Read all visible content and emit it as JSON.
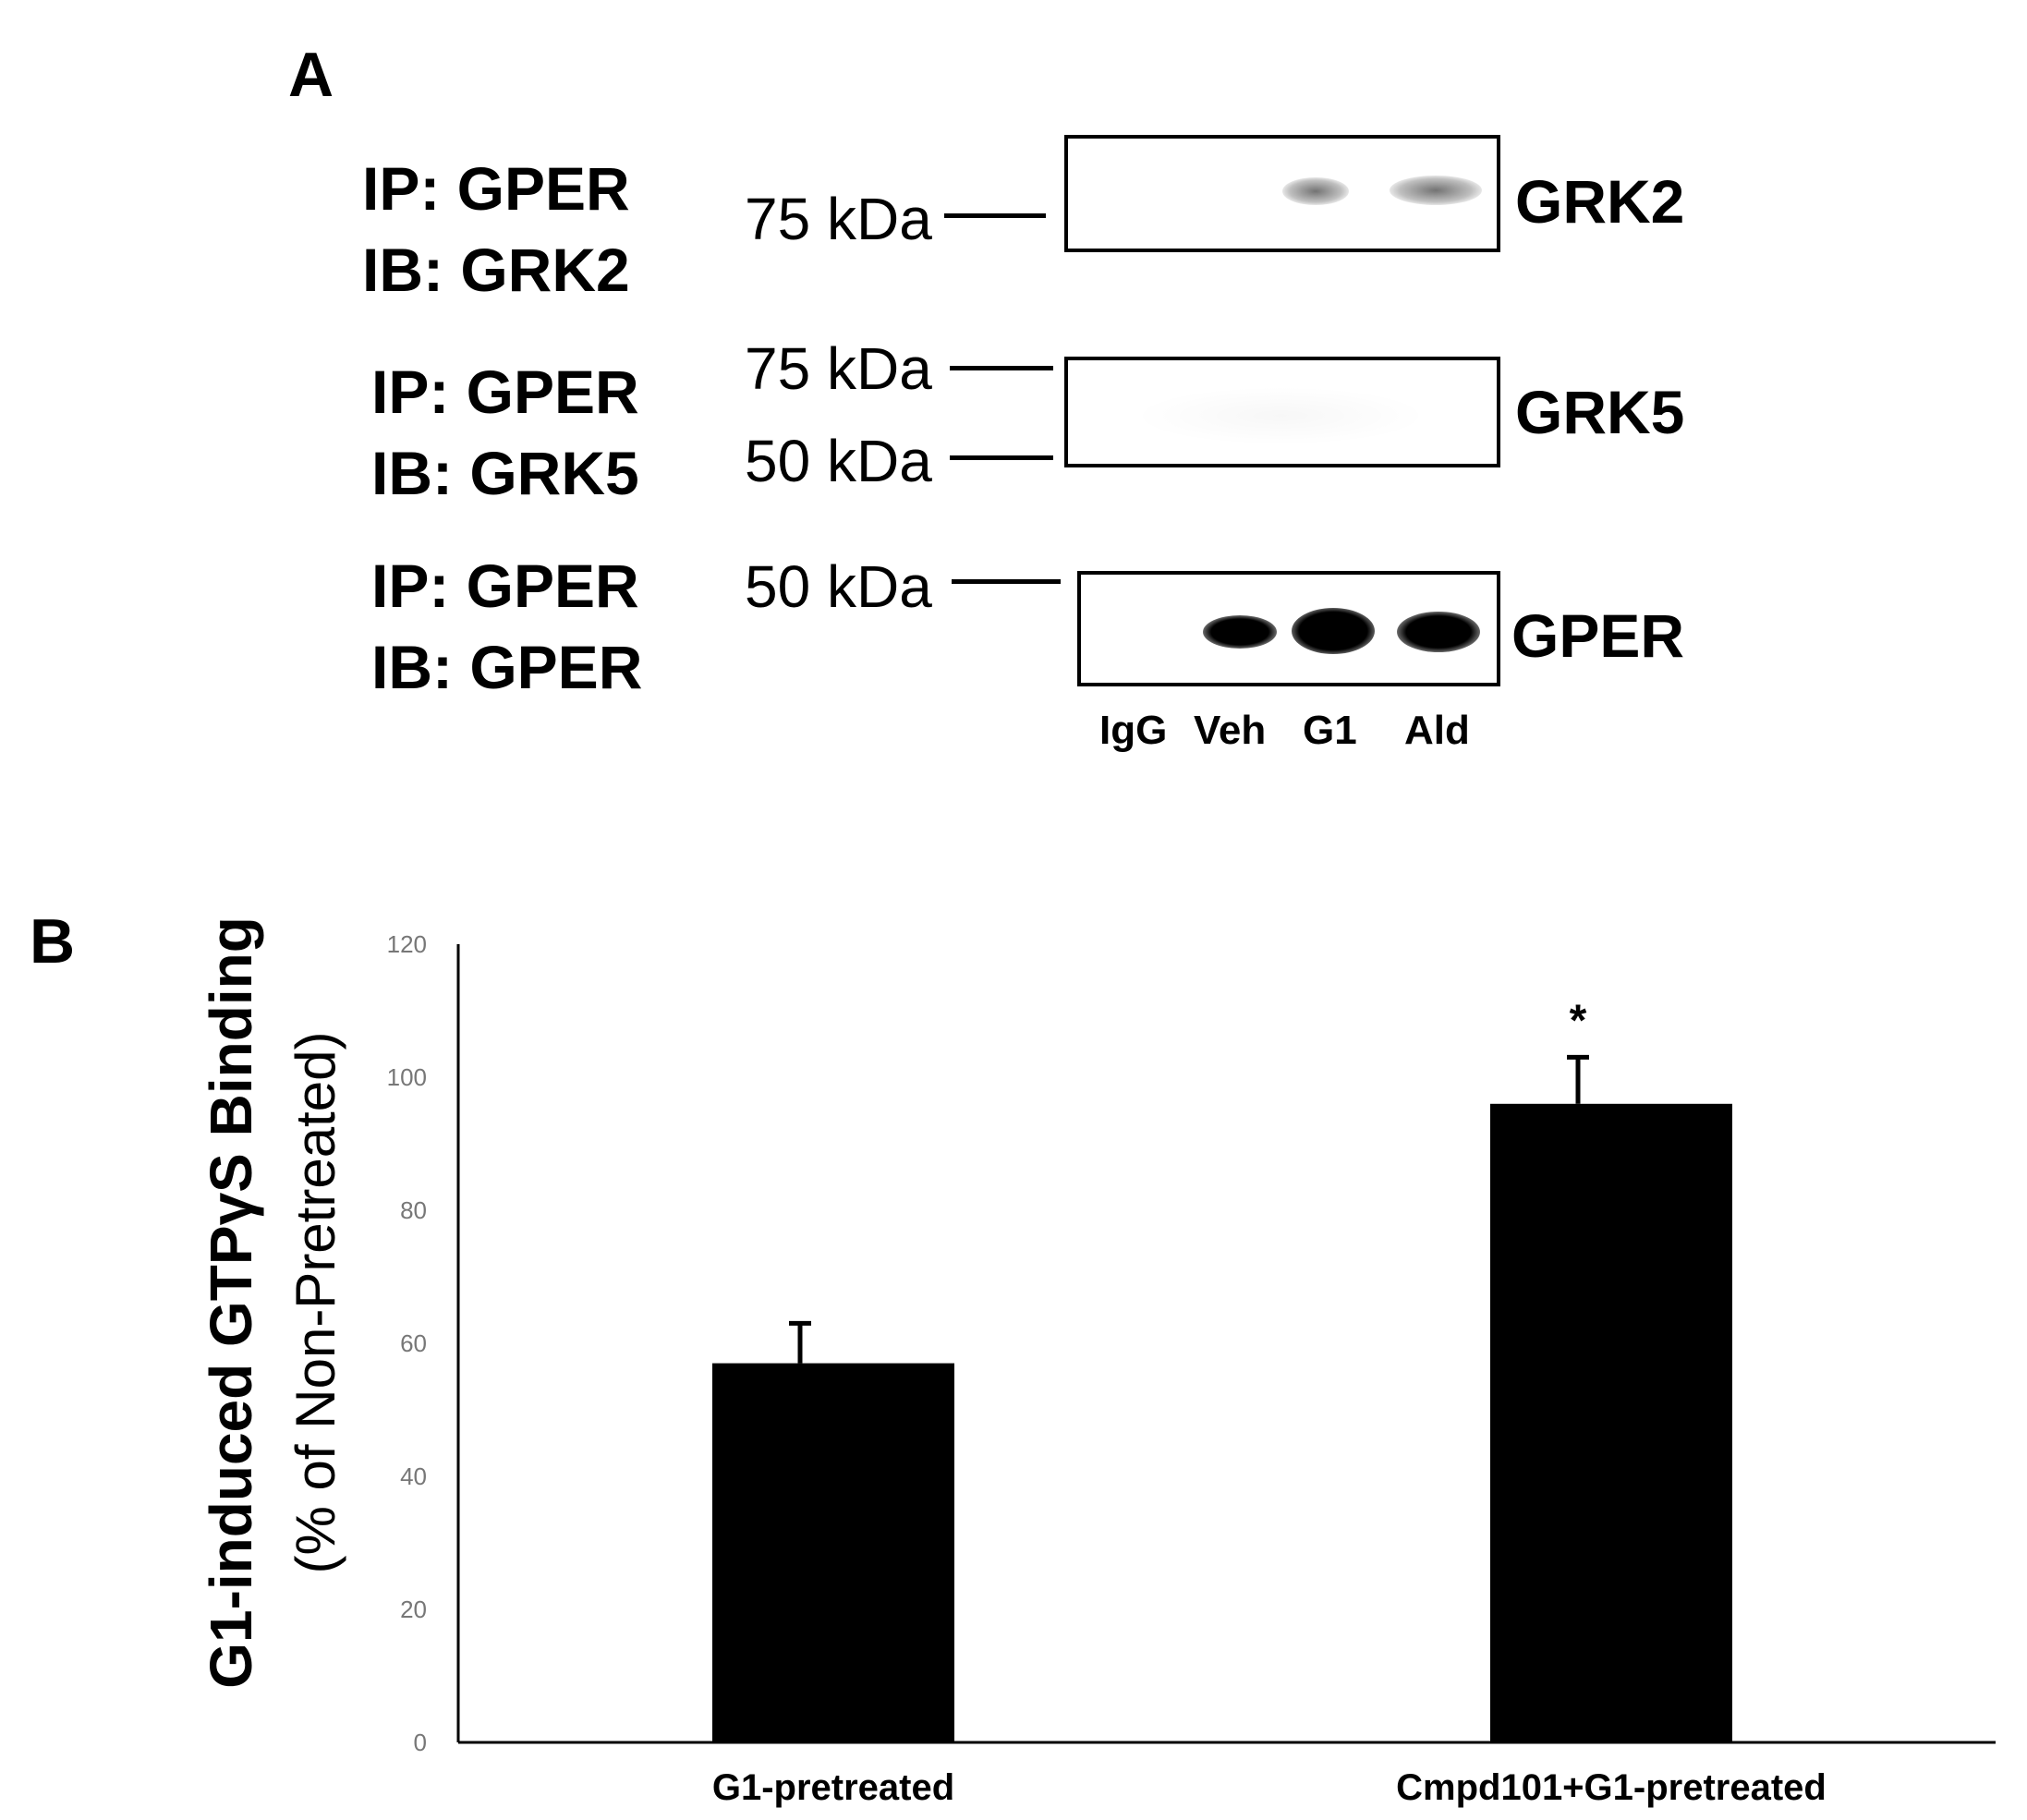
{
  "panel_a": {
    "label": "A",
    "rows": [
      {
        "ip": "IP: GPER",
        "ib": "IB: GRK2",
        "target": "GRK2",
        "markers": [
          "75 kDa"
        ]
      },
      {
        "ip": "IP: GPER",
        "ib": "IB: GRK5",
        "target": "GRK5",
        "markers": [
          "75 kDa",
          "50 kDa"
        ]
      },
      {
        "ip": "IP: GPER",
        "ib": "IB: GPER",
        "target": "GPER",
        "markers": [
          "50 kDa"
        ]
      }
    ],
    "lanes": [
      "IgG",
      "Veh",
      "G1",
      "Ald"
    ]
  },
  "panel_b": {
    "label": "B",
    "ylabel_line1": "G1-induced GTPγS Binding",
    "ylabel_line2": "(% of Non-Pretreated)"
  },
  "chart_data": {
    "type": "bar",
    "categories": [
      "G1-pretreated",
      "Cmpd101+G1-pretreated"
    ],
    "values": [
      57,
      96
    ],
    "errors": [
      6,
      7
    ],
    "significance": [
      "",
      "*"
    ],
    "ylabel": "G1-induced GTPγS Binding (% of Non-Pretreated)",
    "xlabel": "",
    "ylim": [
      0,
      120
    ],
    "yticks": [
      0,
      20,
      40,
      60,
      80,
      100,
      120
    ],
    "grid": false,
    "bar_color": "#000000"
  }
}
